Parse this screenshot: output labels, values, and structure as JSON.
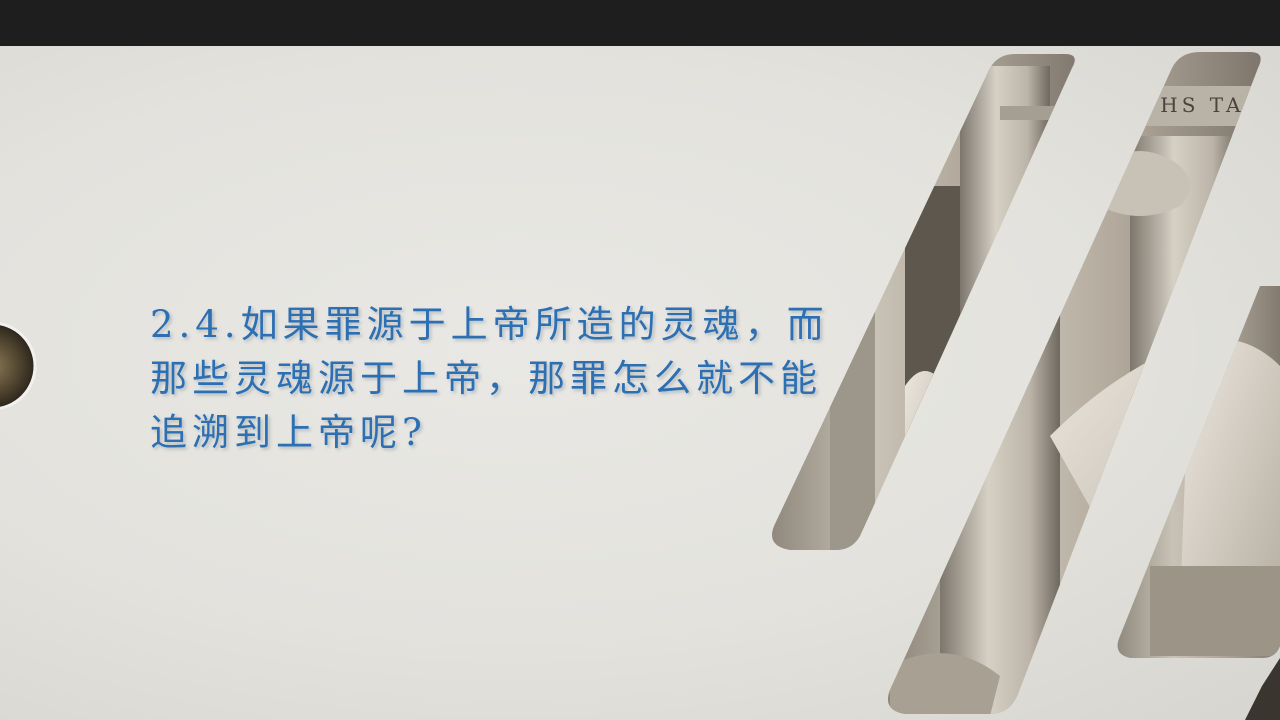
{
  "window": {
    "top_bar_color": "#1e1e1e"
  },
  "slide": {
    "question": "2.4.如果罪源于上帝所造的灵魂，而那些灵魂源于上帝，那罪怎么就不能追溯到上帝呢?",
    "text_color": "#2c6fb3",
    "background_color": "#e6e5e1",
    "image_inscription": "GL YPHS TA ALIS"
  }
}
